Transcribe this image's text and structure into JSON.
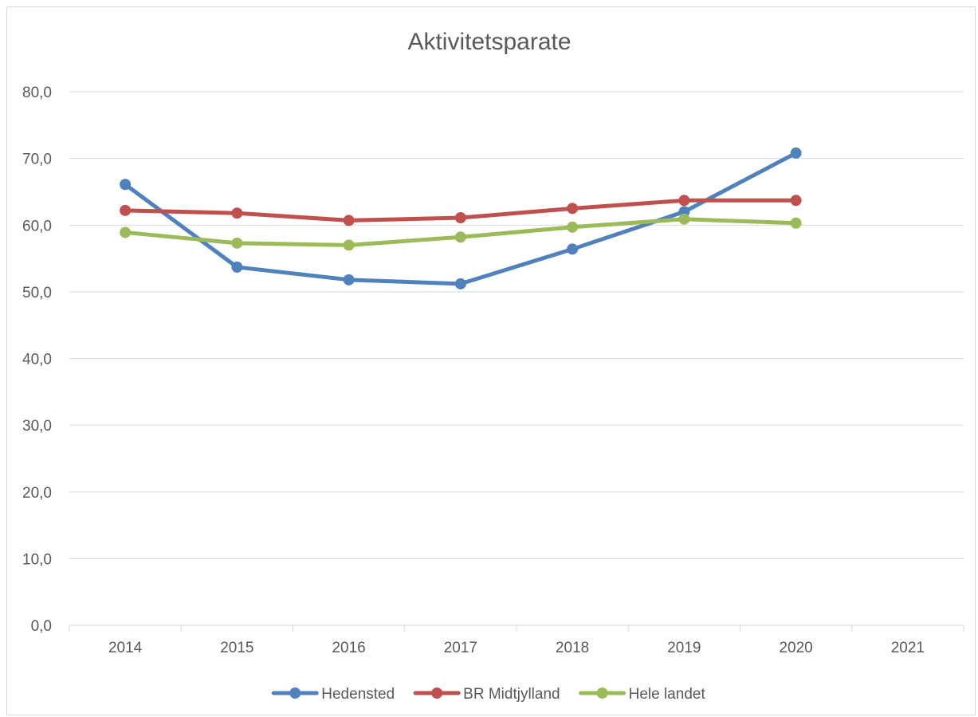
{
  "chart_data": {
    "type": "line",
    "title": "Aktivitetsparate",
    "categories": [
      "2014",
      "2015",
      "2016",
      "2017",
      "2018",
      "2019",
      "2020",
      "2021"
    ],
    "ylim": [
      0,
      80
    ],
    "yticks": [
      "0,0",
      "10,0",
      "20,0",
      "30,0",
      "40,0",
      "50,0",
      "60,0",
      "70,0",
      "80,0"
    ],
    "grid": true,
    "legend_position": "bottom",
    "series": [
      {
        "name": "Hedensted",
        "color": "#4f81bd",
        "values": [
          66.1,
          53.7,
          51.8,
          51.2,
          56.4,
          62.0,
          70.8,
          null
        ]
      },
      {
        "name": "BR Midtjylland",
        "color": "#c0504d",
        "values": [
          62.2,
          61.8,
          60.7,
          61.1,
          62.5,
          63.7,
          63.7,
          null
        ]
      },
      {
        "name": "Hele landet",
        "color": "#9bbb59",
        "values": [
          58.9,
          57.3,
          57.0,
          58.2,
          59.7,
          60.9,
          60.3,
          null
        ]
      }
    ]
  }
}
